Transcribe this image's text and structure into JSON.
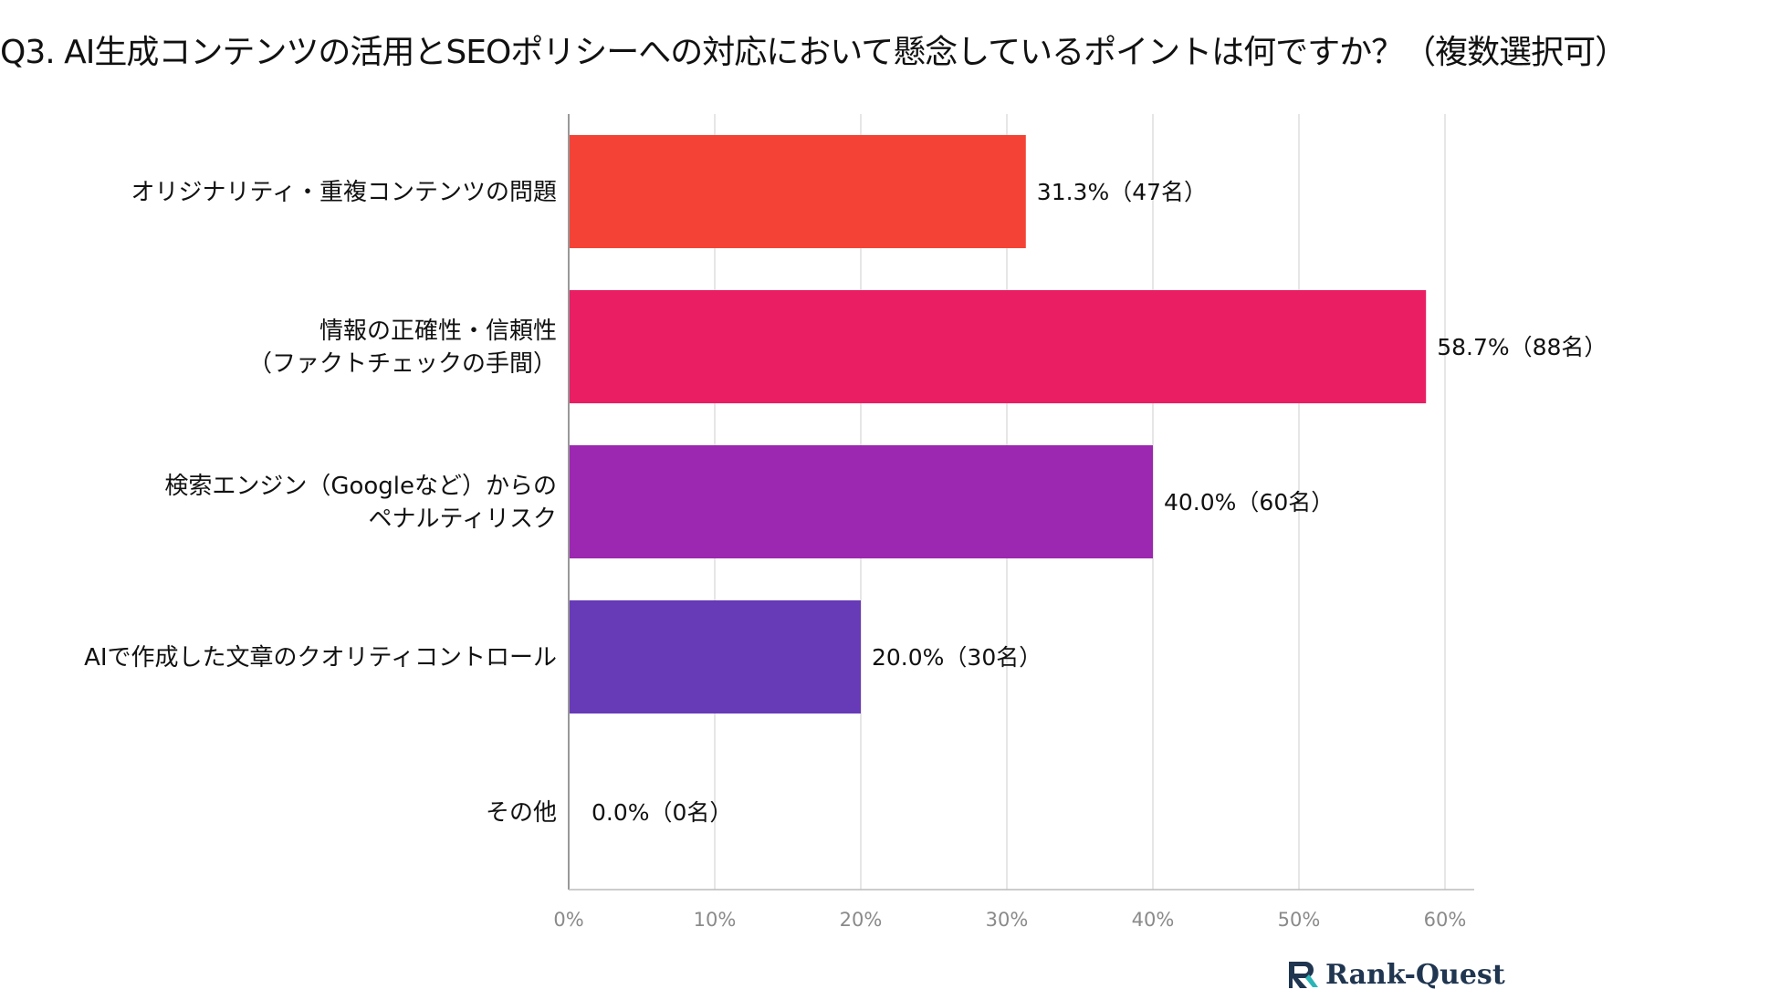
{
  "chart_data": {
    "type": "bar",
    "orientation": "horizontal",
    "title": "Q3. AI生成コンテンツの活用とSEOポリシーへの対応において懸念しているポイントは何ですか？（複数選択可）",
    "categories": [
      [
        "オリジナリティ・重複コンテンツの問題"
      ],
      [
        "情報の正確性・信頼性",
        "（ファクトチェックの手間）"
      ],
      [
        "検索エンジン（Googleなど）からの",
        "ペナルティリスク"
      ],
      [
        "AIで作成した文章のクオリティコントロール"
      ],
      [
        "その他"
      ]
    ],
    "values": [
      31.3,
      58.7,
      40.0,
      20.0,
      0.0
    ],
    "value_labels": [
      "31.3%（47名）",
      "58.7%（88名）",
      "40.0%（60名）",
      "20.0%（30名）",
      "0.0%（0名）"
    ],
    "colors": [
      "#F44336",
      "#E91E63",
      "#9C27B0",
      "#673AB7",
      "#3F51B5"
    ],
    "xlim": [
      0,
      62
    ],
    "ticks": [
      0,
      10,
      20,
      30,
      40,
      50,
      60
    ],
    "tick_labels": [
      "0%",
      "10%",
      "20%",
      "30%",
      "40%",
      "50%",
      "60%"
    ],
    "grid": true,
    "xlabel": "",
    "ylabel": ""
  },
  "brand": {
    "name": "Rank-Quest",
    "accent": "#2bb5b8",
    "primary": "#1f3550"
  }
}
